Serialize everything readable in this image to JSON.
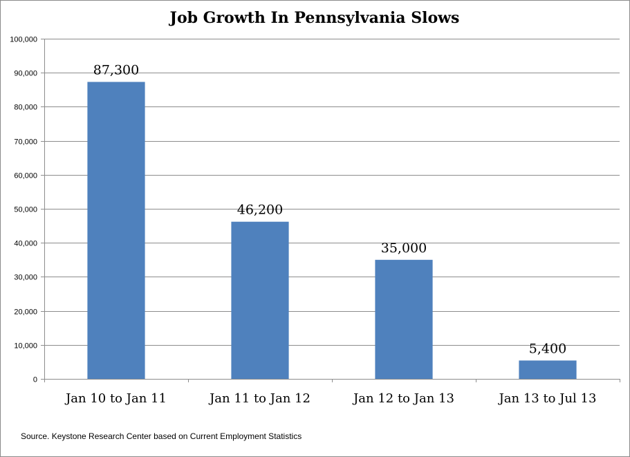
{
  "chart_data": {
    "type": "bar",
    "title": "Job Growth In Pennsylvania Slows",
    "categories": [
      "Jan 10 to Jan 11",
      "Jan 11 to Jan 12",
      "Jan 12 to Jan 13",
      "Jan 13 to Jul 13"
    ],
    "values": [
      87300,
      46200,
      35000,
      5400
    ],
    "data_labels": [
      "87,300",
      "46,200",
      "35,000",
      "5,400"
    ],
    "y_ticks": [
      "0",
      "10,000",
      "20,000",
      "30,000",
      "40,000",
      "50,000",
      "60,000",
      "70,000",
      "80,000",
      "90,000",
      "100,000"
    ],
    "ylim": [
      0,
      100000
    ],
    "grid": true,
    "legend": "none",
    "bar_color": "#4f81bd",
    "xlabel": "",
    "ylabel": ""
  },
  "source_note": "Source. Keystone Research Center based on Current Employment Statistics"
}
